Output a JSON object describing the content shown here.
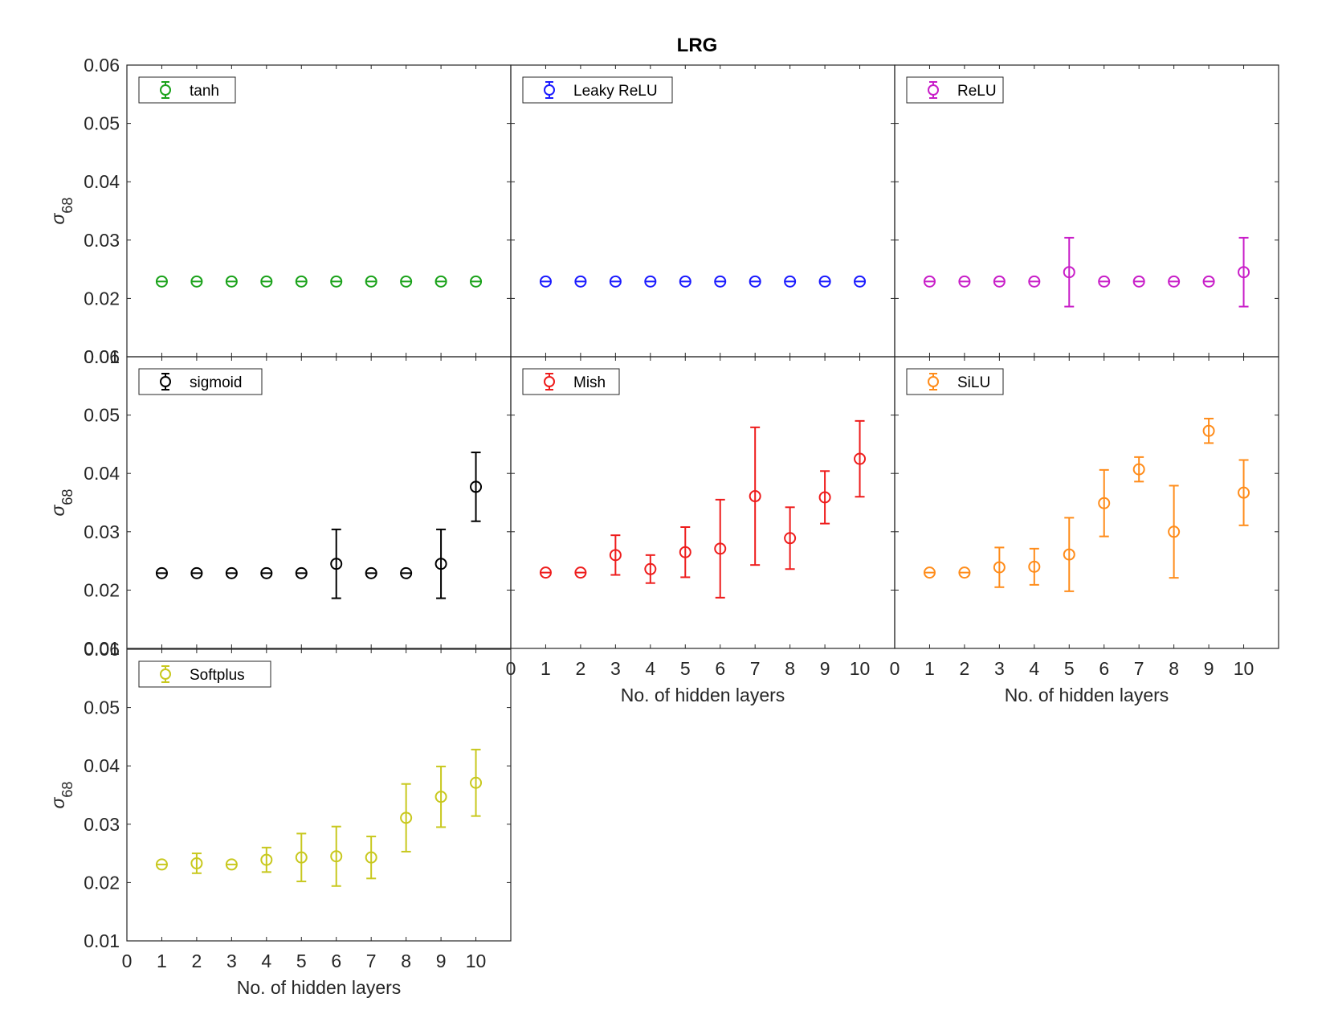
{
  "chart_data": {
    "type": "errorbar-grid",
    "title": "LRG",
    "ylabel_base": "σ",
    "ylabel_sub": "68",
    "xlabel": "No. of hidden layers",
    "xlim": [
      0,
      11
    ],
    "ylim": [
      0.01,
      0.06
    ],
    "yticks": [
      "0.01",
      "0.02",
      "0.03",
      "0.04",
      "0.05",
      "0.06"
    ],
    "xticks": [
      "0",
      "1",
      "2",
      "3",
      "4",
      "5",
      "6",
      "7",
      "8",
      "9",
      "10"
    ],
    "panels": [
      {
        "name": "tanh",
        "color": "#1aa21a",
        "x": [
          1,
          2,
          3,
          4,
          5,
          6,
          7,
          8,
          9,
          10
        ],
        "y": [
          0.0229,
          0.0229,
          0.0229,
          0.0229,
          0.0229,
          0.0229,
          0.0229,
          0.0229,
          0.0229,
          0.0229
        ],
        "err": [
          0.0002,
          0.0002,
          0.0002,
          0.0002,
          0.0002,
          0.0002,
          0.0002,
          0.0002,
          0.0002,
          0.0002
        ]
      },
      {
        "name": "Leaky ReLU",
        "color": "#1a1aff",
        "x": [
          1,
          2,
          3,
          4,
          5,
          6,
          7,
          8,
          9,
          10
        ],
        "y": [
          0.0229,
          0.0229,
          0.0229,
          0.0229,
          0.0229,
          0.0229,
          0.0229,
          0.0229,
          0.0229,
          0.0229
        ],
        "err": [
          0.0002,
          0.0002,
          0.0002,
          0.0002,
          0.0002,
          0.0002,
          0.0002,
          0.0002,
          0.0002,
          0.0002
        ]
      },
      {
        "name": "ReLU",
        "color": "#c81ec8",
        "x": [
          1,
          2,
          3,
          4,
          5,
          6,
          7,
          8,
          9,
          10
        ],
        "y": [
          0.0229,
          0.0229,
          0.0229,
          0.0229,
          0.0245,
          0.0229,
          0.0229,
          0.0229,
          0.0229,
          0.0245
        ],
        "err": [
          0.0002,
          0.0002,
          0.0002,
          0.0002,
          0.0059,
          0.0002,
          0.0002,
          0.0002,
          0.0002,
          0.0059
        ]
      },
      {
        "name": "sigmoid",
        "color": "#000000",
        "x": [
          1,
          2,
          3,
          4,
          5,
          6,
          7,
          8,
          9,
          10
        ],
        "y": [
          0.0229,
          0.0229,
          0.0229,
          0.0229,
          0.0229,
          0.0245,
          0.0229,
          0.0229,
          0.0245,
          0.0377
        ],
        "err": [
          0.0002,
          0.0002,
          0.0002,
          0.0002,
          0.0002,
          0.0059,
          0.0002,
          0.0002,
          0.0059,
          0.0059
        ]
      },
      {
        "name": "Mish",
        "color": "#ee1c1c",
        "x": [
          1,
          2,
          3,
          4,
          5,
          6,
          7,
          8,
          9,
          10
        ],
        "y": [
          0.023,
          0.023,
          0.026,
          0.0236,
          0.0265,
          0.0271,
          0.0361,
          0.0289,
          0.0359,
          0.0425
        ],
        "err": [
          0.0002,
          0.0002,
          0.0034,
          0.0024,
          0.0043,
          0.0084,
          0.0118,
          0.0053,
          0.0045,
          0.0065
        ]
      },
      {
        "name": "SiLU",
        "color": "#ff8c1a",
        "x": [
          1,
          2,
          3,
          4,
          5,
          6,
          7,
          8,
          9,
          10
        ],
        "y": [
          0.023,
          0.023,
          0.0239,
          0.024,
          0.0261,
          0.0349,
          0.0407,
          0.03,
          0.0473,
          0.0367
        ],
        "err": [
          0.0002,
          0.0002,
          0.0034,
          0.0031,
          0.0063,
          0.0057,
          0.0021,
          0.0079,
          0.0021,
          0.0056
        ]
      },
      {
        "name": "Softplus",
        "color": "#c8c81e",
        "x": [
          1,
          2,
          3,
          4,
          5,
          6,
          7,
          8,
          9,
          10
        ],
        "y": [
          0.0231,
          0.0233,
          0.0231,
          0.0239,
          0.0243,
          0.0245,
          0.0243,
          0.0311,
          0.0347,
          0.0371
        ],
        "err": [
          0.0002,
          0.0017,
          0.0002,
          0.0021,
          0.0041,
          0.0051,
          0.0036,
          0.0058,
          0.0052,
          0.0057
        ]
      }
    ]
  }
}
